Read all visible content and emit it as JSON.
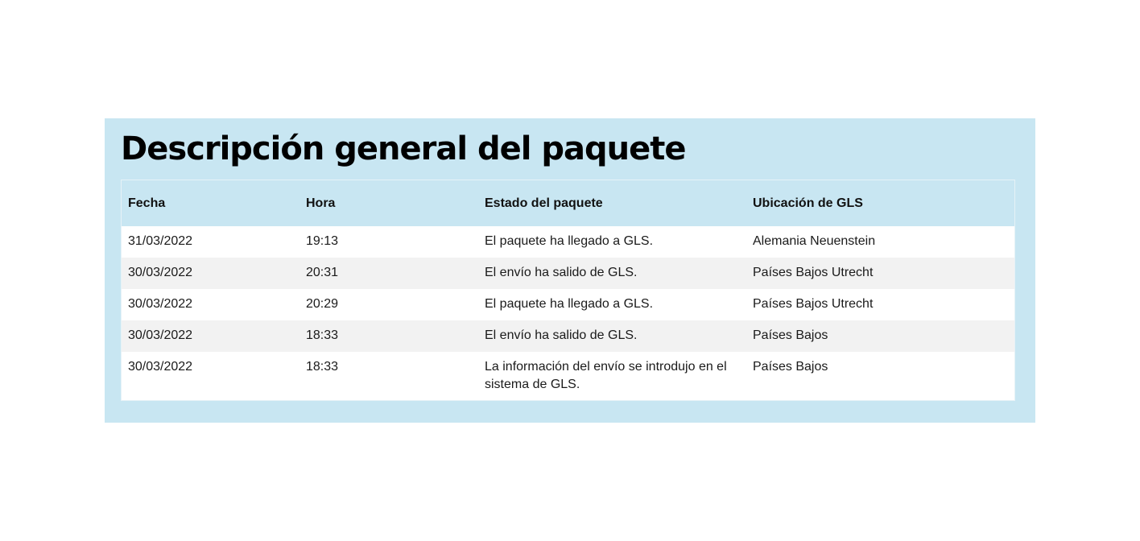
{
  "title": "Descripción general del paquete",
  "table": {
    "headers": [
      "Fecha",
      "Hora",
      "Estado del paquete",
      "Ubicación de GLS"
    ],
    "rows": [
      {
        "fecha": "31/03/2022",
        "hora": "19:13",
        "estado": "El paquete ha llegado a GLS.",
        "ubicacion": "Alemania Neuenstein"
      },
      {
        "fecha": "30/03/2022",
        "hora": "20:31",
        "estado": "El envío ha salido de GLS.",
        "ubicacion": "Países Bajos Utrecht"
      },
      {
        "fecha": "30/03/2022",
        "hora": "20:29",
        "estado": "El paquete ha llegado a GLS.",
        "ubicacion": "Países Bajos Utrecht"
      },
      {
        "fecha": "30/03/2022",
        "hora": "18:33",
        "estado": "El envío ha salido de GLS.",
        "ubicacion": "Países Bajos"
      },
      {
        "fecha": "30/03/2022",
        "hora": "18:33",
        "estado": "La información del envío se introdujo en el sistema de GLS.",
        "ubicacion": "Países Bajos"
      }
    ]
  },
  "colors": {
    "panel_background": "#c8e6f2",
    "row_stripe": "#f2f2f2"
  }
}
